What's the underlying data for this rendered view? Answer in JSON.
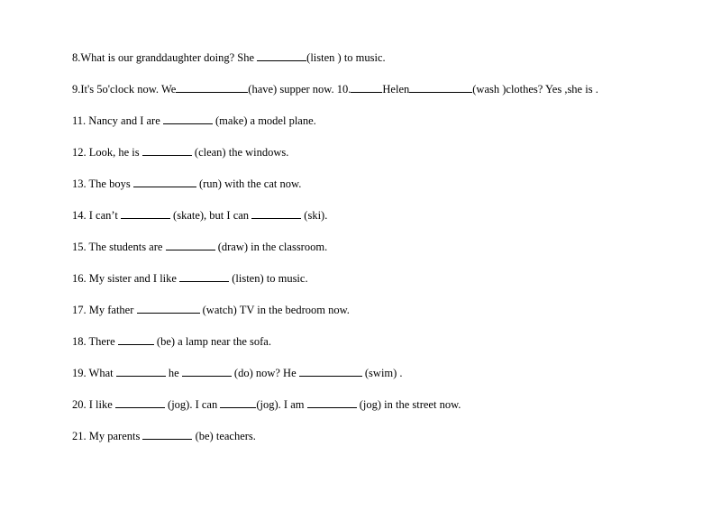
{
  "lines": {
    "l8a": "8.What is our granddaughter doing? She ",
    "l8b": "(listen ) to music.",
    "l9a": "9.It's 5o'clock now. We",
    "l9b": "(have) supper now. 10.",
    "l9c": "Helen",
    "l9d": "(wash )clothes? Yes ,she is .",
    "l11a": "11. Nancy and I are ",
    "l11b": " (make) a model plane.",
    "l12a": "12. Look, he is ",
    "l12b": " (clean) the windows.",
    "l13a": "13. The boys ",
    "l13b": " (run) with the cat now.",
    "l14a": "14. I can’t ",
    "l14b": " (skate), but I can ",
    "l14c": " (ski).",
    "l15a": "15. The students are ",
    "l15b": " (draw) in the classroom.",
    "l16a": "16. My sister and I like ",
    "l16b": " (listen) to music.",
    "l17a": "17. My father ",
    "l17b": " (watch) TV in the bedroom now.",
    "l18a": "18. There ",
    "l18b": " (be) a lamp near the sofa.",
    "l19a": "19. What ",
    "l19b": " he ",
    "l19c": " (do) now? He ",
    "l19d": " (swim) .",
    "l20a": "20. I like ",
    "l20b": " (jog). I can ",
    "l20c": "(jog). I am ",
    "l20d": " (jog) in the street now.",
    "l21a": "21. My parents ",
    "l21b": " (be) teachers."
  }
}
